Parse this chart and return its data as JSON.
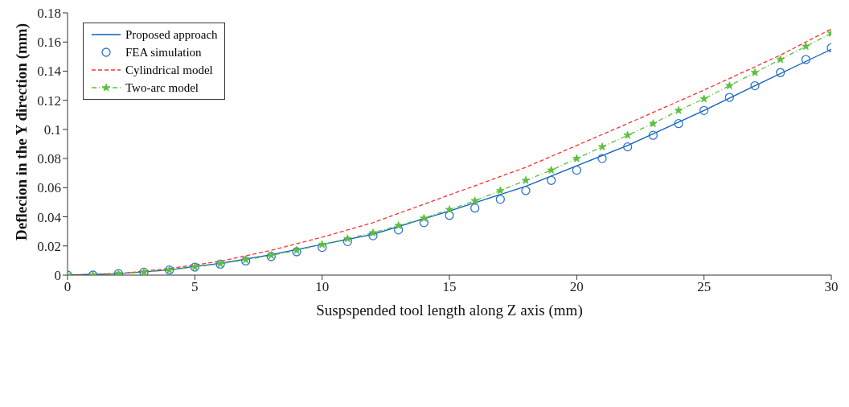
{
  "chart_data": {
    "type": "line",
    "xlabel": "Suspspended tool length along Z axis (mm)",
    "ylabel": "Deflecion in the Y direction (mm)",
    "xlim": [
      0,
      30
    ],
    "xticks": [
      0,
      5,
      10,
      15,
      20,
      25,
      30
    ],
    "ylim": [
      0,
      0.18
    ],
    "yticks": [
      0,
      0.02,
      0.04,
      0.06,
      0.08,
      0.1,
      0.12,
      0.14,
      0.16,
      0.18
    ],
    "grid": false,
    "legend": "top left",
    "series": [
      {
        "name": "Proposed approach",
        "color": "#0b5fbf",
        "line_style": "solid",
        "marker": "none",
        "x": [
          0,
          2,
          4,
          5,
          6,
          8,
          10,
          12,
          15,
          18,
          20,
          22,
          25,
          27,
          30
        ],
        "values": [
          0,
          0.001,
          0.0035,
          0.006,
          0.008,
          0.014,
          0.021,
          0.028,
          0.044,
          0.061,
          0.075,
          0.089,
          0.113,
          0.13,
          0.155
        ]
      },
      {
        "name": "FEA simulation",
        "type": "scatter",
        "color": "#2f73c8",
        "marker": "circle",
        "x": [
          0,
          1,
          2,
          3,
          4,
          5,
          6,
          7,
          8,
          9,
          10,
          11,
          12,
          13,
          14,
          15,
          16,
          17,
          18,
          19,
          20,
          21,
          22,
          23,
          24,
          25,
          26,
          27,
          28,
          29,
          30
        ],
        "values": [
          0,
          0,
          0.001,
          0.002,
          0.0035,
          0.0055,
          0.0075,
          0.0097,
          0.0127,
          0.016,
          0.019,
          0.023,
          0.027,
          0.031,
          0.036,
          0.041,
          0.046,
          0.052,
          0.058,
          0.065,
          0.072,
          0.08,
          0.088,
          0.096,
          0.104,
          0.113,
          0.122,
          0.13,
          0.139,
          0.148,
          0.156
        ]
      },
      {
        "name": "Cylindrical model",
        "color": "#ff3030",
        "line_style": "dashed",
        "marker": "none",
        "x": [
          0,
          2,
          4,
          5,
          6,
          8,
          10,
          12,
          15,
          18,
          20,
          22,
          25,
          28,
          30
        ],
        "values": [
          0,
          0.001,
          0.0045,
          0.007,
          0.0095,
          0.017,
          0.026,
          0.036,
          0.055,
          0.074,
          0.089,
          0.104,
          0.127,
          0.151,
          0.169
        ]
      },
      {
        "name": "Two-arc model",
        "color": "#5cbf3c",
        "line_style": "dashdot",
        "marker": "star",
        "x": [
          0,
          1,
          2,
          3,
          4,
          5,
          6,
          7,
          8,
          9,
          10,
          11,
          12,
          13,
          14,
          15,
          16,
          17,
          18,
          19,
          20,
          21,
          22,
          23,
          24,
          25,
          26,
          27,
          28,
          29,
          30
        ],
        "values": [
          0,
          0,
          0.001,
          0.002,
          0.0035,
          0.0055,
          0.0078,
          0.0105,
          0.0135,
          0.017,
          0.021,
          0.025,
          0.029,
          0.034,
          0.039,
          0.045,
          0.051,
          0.058,
          0.065,
          0.072,
          0.08,
          0.088,
          0.096,
          0.104,
          0.113,
          0.121,
          0.13,
          0.139,
          0.148,
          0.157,
          0.166
        ]
      }
    ]
  }
}
